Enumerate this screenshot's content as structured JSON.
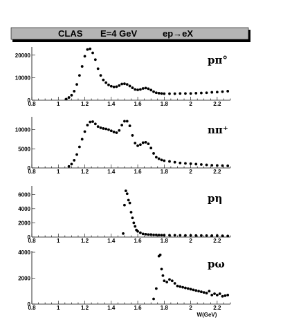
{
  "title": {
    "experiment": "CLAS",
    "energy": "E=4 GeV",
    "reaction": "ep→eX"
  },
  "chart_data": [
    {
      "type": "scatter",
      "channel_label": "pπ°",
      "xlabel": "",
      "ylabel": "",
      "xlim": [
        0.8,
        2.3
      ],
      "ylim": [
        0,
        23000
      ],
      "x_ticks": [
        "0.8",
        "1",
        "1.2",
        "1.4",
        "1.6",
        "1.8",
        "2",
        "2.2"
      ],
      "y_ticks": [
        "0",
        "10000",
        "20000"
      ],
      "series": [
        {
          "x": [
            1.06,
            1.08,
            1.1,
            1.12,
            1.14,
            1.16,
            1.18,
            1.2,
            1.22,
            1.24,
            1.26,
            1.28,
            1.3,
            1.32,
            1.34,
            1.36,
            1.38,
            1.4,
            1.42,
            1.44,
            1.46,
            1.48,
            1.5,
            1.52,
            1.54,
            1.56,
            1.58,
            1.6,
            1.62,
            1.64,
            1.66,
            1.68,
            1.7,
            1.72,
            1.74,
            1.76,
            1.78,
            1.8,
            1.84,
            1.88,
            1.92,
            1.96,
            2.0,
            2.04,
            2.08,
            2.12,
            2.16,
            2.2,
            2.24,
            2.28
          ],
          "y": [
            500,
            1200,
            2200,
            4000,
            7000,
            11000,
            15000,
            19500,
            22500,
            22800,
            21000,
            18000,
            14000,
            11000,
            9000,
            7800,
            6800,
            6200,
            5900,
            6000,
            6500,
            7200,
            7300,
            7000,
            6300,
            5500,
            4800,
            4600,
            4800,
            5200,
            5400,
            5100,
            4500,
            3800,
            3300,
            3100,
            3000,
            2900,
            2900,
            2900,
            3000,
            3000,
            3000,
            3100,
            3200,
            3300,
            3500,
            3600,
            3800,
            4000
          ]
        }
      ]
    },
    {
      "type": "scatter",
      "channel_label": "nπ⁺",
      "xlabel": "",
      "ylabel": "",
      "xlim": [
        0.8,
        2.3
      ],
      "ylim": [
        0,
        13000
      ],
      "x_ticks": [
        "0.8",
        "1",
        "1.2",
        "1.4",
        "1.6",
        "1.8",
        "2",
        "2.2"
      ],
      "y_ticks": [
        "0",
        "5000",
        "10000"
      ],
      "series": [
        {
          "x": [
            1.08,
            1.1,
            1.12,
            1.14,
            1.16,
            1.18,
            1.2,
            1.22,
            1.24,
            1.26,
            1.28,
            1.3,
            1.32,
            1.34,
            1.36,
            1.38,
            1.4,
            1.42,
            1.44,
            1.46,
            1.48,
            1.5,
            1.52,
            1.54,
            1.56,
            1.58,
            1.6,
            1.62,
            1.64,
            1.66,
            1.68,
            1.7,
            1.72,
            1.74,
            1.76,
            1.78,
            1.8,
            1.84,
            1.88,
            1.92,
            1.96,
            2.0,
            2.04,
            2.08,
            2.12,
            2.16,
            2.2,
            2.24,
            2.28
          ],
          "y": [
            400,
            1000,
            2000,
            3500,
            5500,
            7500,
            9500,
            11200,
            12000,
            12100,
            11500,
            10800,
            10500,
            10300,
            10200,
            10000,
            9700,
            9400,
            9200,
            9800,
            11200,
            12200,
            12200,
            11000,
            8500,
            6500,
            5800,
            6100,
            6600,
            6700,
            6300,
            5200,
            3800,
            2800,
            2400,
            2100,
            1900,
            1700,
            1500,
            1300,
            1200,
            1100,
            1000,
            900,
            800,
            700,
            650,
            600,
            550
          ]
        }
      ]
    },
    {
      "type": "scatter",
      "channel_label": "pη",
      "xlabel": "",
      "ylabel": "",
      "xlim": [
        0.8,
        2.3
      ],
      "ylim": [
        0,
        7000
      ],
      "x_ticks": [
        "0.8",
        "1",
        "1.2",
        "1.4",
        "1.6",
        "1.8",
        "2",
        "2.2"
      ],
      "y_ticks": [
        "0",
        "2000",
        "4000",
        "6000"
      ],
      "series": [
        {
          "x": [
            1.49,
            1.5,
            1.51,
            1.52,
            1.53,
            1.54,
            1.55,
            1.56,
            1.57,
            1.58,
            1.59,
            1.6,
            1.62,
            1.64,
            1.66,
            1.68,
            1.7,
            1.72,
            1.74,
            1.76,
            1.78,
            1.8,
            1.84,
            1.88,
            1.92,
            1.96,
            2.0,
            2.04,
            2.08,
            2.12,
            2.16,
            2.2,
            2.24,
            2.28
          ],
          "y": [
            500,
            4500,
            6500,
            6100,
            5200,
            4800,
            3500,
            2700,
            2000,
            1500,
            1000,
            800,
            600,
            450,
            400,
            350,
            350,
            300,
            300,
            280,
            270,
            260,
            250,
            250,
            240,
            230,
            230,
            220,
            220,
            210,
            200,
            200,
            180,
            150
          ]
        }
      ]
    },
    {
      "type": "scatter",
      "channel_label": "pω",
      "xlabel": "W(GeV)",
      "ylabel": "",
      "xlim": [
        0.8,
        2.3
      ],
      "ylim": [
        0,
        4000
      ],
      "x_ticks": [
        "0.8",
        "1",
        "1.2",
        "1.4",
        "1.6",
        "1.8",
        "2",
        "2.2"
      ],
      "y_ticks": [
        "0",
        "2000",
        "4000"
      ],
      "series": [
        {
          "x": [
            1.72,
            1.74,
            1.76,
            1.77,
            1.78,
            1.79,
            1.8,
            1.82,
            1.84,
            1.86,
            1.88,
            1.9,
            1.92,
            1.94,
            1.96,
            1.98,
            2.0,
            2.02,
            2.04,
            2.06,
            2.08,
            2.1,
            2.12,
            2.14,
            2.16,
            2.18,
            2.2,
            2.22,
            2.24,
            2.26,
            2.28
          ],
          "y": [
            400,
            1200,
            3700,
            3800,
            2700,
            2200,
            1800,
            1700,
            1900,
            1800,
            1600,
            1400,
            1350,
            1300,
            1250,
            1200,
            1150,
            1100,
            1050,
            1000,
            950,
            900,
            850,
            1000,
            700,
            800,
            700,
            800,
            600,
            650,
            700
          ]
        }
      ]
    }
  ]
}
